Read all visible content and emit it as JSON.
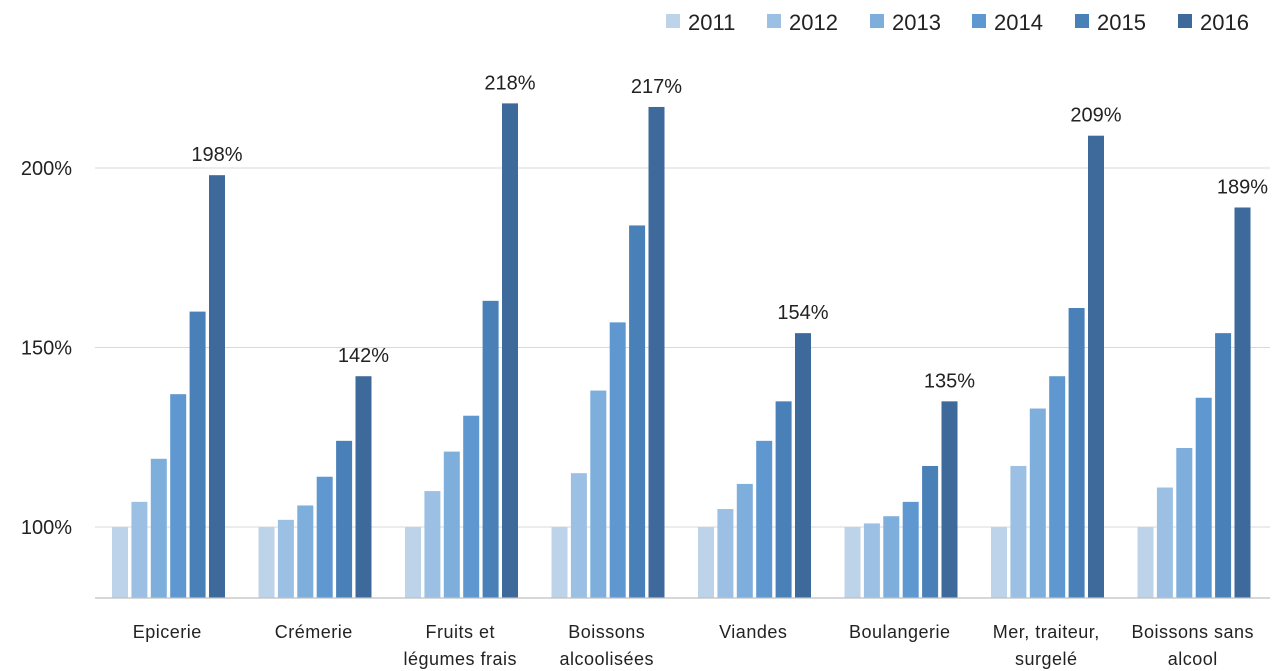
{
  "chart_data": {
    "type": "bar",
    "categories": [
      [
        "Epicerie"
      ],
      [
        "Crémerie"
      ],
      [
        "Fruits et",
        "légumes frais"
      ],
      [
        "Boissons",
        "alcoolisées"
      ],
      [
        "Viandes"
      ],
      [
        "Boulangerie"
      ],
      [
        "Mer, traiteur,",
        "surgelé"
      ],
      [
        "Boissons sans",
        "alcool"
      ]
    ],
    "series": [
      {
        "name": "2011",
        "color": "#bcd3ea",
        "values": [
          100,
          100,
          100,
          100,
          100,
          100,
          100,
          100
        ]
      },
      {
        "name": "2012",
        "color": "#9cc0e4",
        "values": [
          107,
          102,
          110,
          115,
          105,
          101,
          117,
          111
        ]
      },
      {
        "name": "2013",
        "color": "#7eaedc",
        "values": [
          119,
          106,
          121,
          138,
          112,
          103,
          133,
          122
        ]
      },
      {
        "name": "2014",
        "color": "#5f98d0",
        "values": [
          137,
          114,
          131,
          157,
          124,
          107,
          142,
          136
        ]
      },
      {
        "name": "2015",
        "color": "#4a80b8",
        "values": [
          160,
          124,
          163,
          184,
          135,
          117,
          161,
          154
        ]
      },
      {
        "name": "2016",
        "color": "#3d6a9a",
        "values": [
          198,
          142,
          218,
          217,
          154,
          135,
          209,
          189
        ]
      }
    ],
    "data_labels": [
      "198%",
      "142%",
      "218%",
      "217%",
      "154%",
      "135%",
      "209%",
      "189%"
    ],
    "y_ticks": [
      100,
      150,
      200
    ],
    "y_tick_labels": [
      "100%",
      "150%",
      "200%"
    ],
    "ylim": [
      80,
      220
    ],
    "grid": true,
    "legend_position": "top-right",
    "title": "",
    "xlabel": "",
    "ylabel": ""
  }
}
